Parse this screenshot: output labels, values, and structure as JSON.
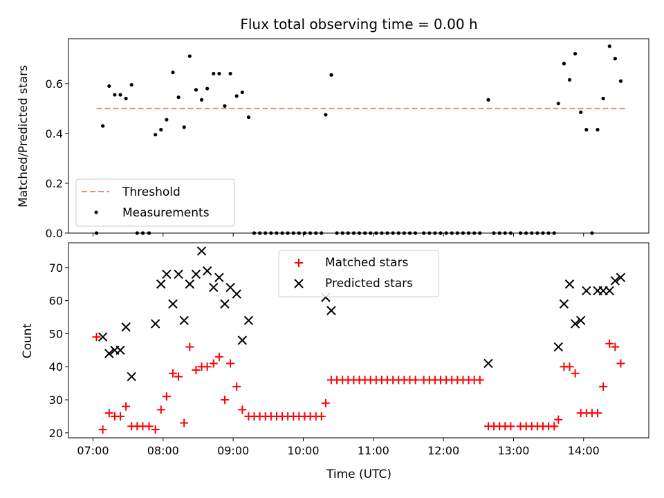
{
  "chart_data": [
    {
      "type": "scatter",
      "title": "Flux total observing time = 0.00 h",
      "xlabel": "",
      "ylabel": "Matched/Predicted stars",
      "xlim": [
        -0.35,
        7.93
      ],
      "ylim": [
        0,
        0.78
      ],
      "yticks": [
        "0.0",
        "0.2",
        "0.4",
        "0.6"
      ],
      "legend": {
        "placement": "lower-left",
        "entries": [
          "Threshold",
          "Measurements"
        ]
      },
      "threshold": {
        "name": "Threshold",
        "y": 0.5,
        "x": [
          0.05,
          7.6
        ],
        "color": "#ff7f7f"
      },
      "series": [
        {
          "name": "Measurements",
          "color": "#000000",
          "points": [
            [
              0.05,
              0.0
            ],
            [
              0.14,
              0.43
            ],
            [
              0.23,
              0.59
            ],
            [
              0.31,
              0.555
            ],
            [
              0.39,
              0.555
            ],
            [
              0.47,
              0.54
            ],
            [
              0.55,
              0.595
            ],
            [
              0.63,
              0.0
            ],
            [
              0.71,
              0.0
            ],
            [
              0.8,
              0.0
            ],
            [
              0.89,
              0.395
            ],
            [
              0.97,
              0.415
            ],
            [
              1.05,
              0.455
            ],
            [
              1.14,
              0.645
            ],
            [
              1.22,
              0.545
            ],
            [
              1.3,
              0.425
            ],
            [
              1.38,
              0.71
            ],
            [
              1.47,
              0.575
            ],
            [
              1.55,
              0.535
            ],
            [
              1.63,
              0.58
            ],
            [
              1.72,
              0.64
            ],
            [
              1.8,
              0.64
            ],
            [
              1.88,
              0.51
            ],
            [
              1.96,
              0.64
            ],
            [
              2.05,
              0.55
            ],
            [
              2.13,
              0.565
            ],
            [
              2.22,
              0.465
            ],
            [
              2.3,
              0.0
            ],
            [
              2.38,
              0.0
            ],
            [
              2.46,
              0.0
            ],
            [
              2.54,
              0.0
            ],
            [
              2.62,
              0.0
            ],
            [
              2.7,
              0.0
            ],
            [
              2.78,
              0.0
            ],
            [
              2.86,
              0.0
            ],
            [
              2.94,
              0.0
            ],
            [
              3.02,
              0.0
            ],
            [
              3.1,
              0.0
            ],
            [
              3.18,
              0.0
            ],
            [
              3.26,
              0.0
            ],
            [
              3.32,
              0.475
            ],
            [
              3.4,
              0.635
            ],
            [
              3.48,
              0.0
            ],
            [
              3.56,
              0.0
            ],
            [
              3.64,
              0.0
            ],
            [
              3.72,
              0.0
            ],
            [
              3.8,
              0.0
            ],
            [
              3.88,
              0.0
            ],
            [
              3.96,
              0.0
            ],
            [
              4.04,
              0.0
            ],
            [
              4.12,
              0.0
            ],
            [
              4.2,
              0.0
            ],
            [
              4.28,
              0.0
            ],
            [
              4.36,
              0.0
            ],
            [
              4.44,
              0.0
            ],
            [
              4.52,
              0.0
            ],
            [
              4.6,
              0.0
            ],
            [
              4.72,
              0.0
            ],
            [
              4.8,
              0.0
            ],
            [
              4.88,
              0.0
            ],
            [
              4.96,
              0.0
            ],
            [
              5.04,
              0.0
            ],
            [
              5.12,
              0.0
            ],
            [
              5.2,
              0.0
            ],
            [
              5.28,
              0.0
            ],
            [
              5.36,
              0.0
            ],
            [
              5.44,
              0.0
            ],
            [
              5.52,
              0.0
            ],
            [
              5.64,
              0.535
            ],
            [
              5.72,
              0.0
            ],
            [
              5.8,
              0.0
            ],
            [
              5.88,
              0.0
            ],
            [
              5.96,
              0.0
            ],
            [
              6.1,
              0.0
            ],
            [
              6.18,
              0.0
            ],
            [
              6.26,
              0.0
            ],
            [
              6.34,
              0.0
            ],
            [
              6.42,
              0.0
            ],
            [
              6.5,
              0.0
            ],
            [
              6.58,
              0.0
            ],
            [
              6.64,
              0.52
            ],
            [
              6.72,
              0.68
            ],
            [
              6.8,
              0.615
            ],
            [
              6.88,
              0.72
            ],
            [
              6.96,
              0.485
            ],
            [
              7.04,
              0.415
            ],
            [
              7.12,
              0.0
            ],
            [
              7.2,
              0.415
            ],
            [
              7.28,
              0.54
            ],
            [
              7.37,
              0.75
            ],
            [
              7.45,
              0.7
            ],
            [
              7.53,
              0.61
            ]
          ]
        }
      ]
    },
    {
      "type": "scatter",
      "title": "",
      "xlabel": "Time (UTC)",
      "ylabel": "Count",
      "xlim": [
        -0.35,
        7.93
      ],
      "ylim": [
        18.5,
        77.5
      ],
      "xticks": [
        "07:00",
        "08:00",
        "09:00",
        "10:00",
        "11:00",
        "12:00",
        "13:00",
        "14:00"
      ],
      "yticks": [
        "20",
        "30",
        "40",
        "50",
        "60",
        "70"
      ],
      "legend": {
        "placement": "top-center",
        "entries": [
          "Matched stars",
          "Predicted stars"
        ]
      },
      "series": [
        {
          "name": "Matched stars",
          "marker": "plus",
          "color": "#ff0000",
          "points": [
            [
              0.05,
              49
            ],
            [
              0.14,
              21
            ],
            [
              0.23,
              26
            ],
            [
              0.31,
              25
            ],
            [
              0.39,
              25
            ],
            [
              0.47,
              28
            ],
            [
              0.55,
              22
            ],
            [
              0.63,
              22
            ],
            [
              0.71,
              22
            ],
            [
              0.8,
              22
            ],
            [
              0.89,
              21
            ],
            [
              0.97,
              27
            ],
            [
              1.05,
              31
            ],
            [
              1.14,
              38
            ],
            [
              1.22,
              37
            ],
            [
              1.3,
              23
            ],
            [
              1.38,
              46
            ],
            [
              1.47,
              39
            ],
            [
              1.55,
              40
            ],
            [
              1.63,
              40
            ],
            [
              1.72,
              41
            ],
            [
              1.8,
              43
            ],
            [
              1.88,
              30
            ],
            [
              1.96,
              41
            ],
            [
              2.05,
              34
            ],
            [
              2.13,
              27
            ],
            [
              2.22,
              25
            ],
            [
              2.3,
              25
            ],
            [
              2.38,
              25
            ],
            [
              2.46,
              25
            ],
            [
              2.54,
              25
            ],
            [
              2.62,
              25
            ],
            [
              2.7,
              25
            ],
            [
              2.78,
              25
            ],
            [
              2.86,
              25
            ],
            [
              2.94,
              25
            ],
            [
              3.02,
              25
            ],
            [
              3.1,
              25
            ],
            [
              3.18,
              25
            ],
            [
              3.26,
              25
            ],
            [
              3.32,
              29
            ],
            [
              3.4,
              36
            ],
            [
              3.48,
              36
            ],
            [
              3.56,
              36
            ],
            [
              3.64,
              36
            ],
            [
              3.72,
              36
            ],
            [
              3.8,
              36
            ],
            [
              3.88,
              36
            ],
            [
              3.96,
              36
            ],
            [
              4.04,
              36
            ],
            [
              4.12,
              36
            ],
            [
              4.2,
              36
            ],
            [
              4.28,
              36
            ],
            [
              4.36,
              36
            ],
            [
              4.44,
              36
            ],
            [
              4.52,
              36
            ],
            [
              4.6,
              36
            ],
            [
              4.72,
              36
            ],
            [
              4.8,
              36
            ],
            [
              4.88,
              36
            ],
            [
              4.96,
              36
            ],
            [
              5.04,
              36
            ],
            [
              5.12,
              36
            ],
            [
              5.2,
              36
            ],
            [
              5.28,
              36
            ],
            [
              5.36,
              36
            ],
            [
              5.44,
              36
            ],
            [
              5.52,
              36
            ],
            [
              5.64,
              22
            ],
            [
              5.72,
              22
            ],
            [
              5.8,
              22
            ],
            [
              5.88,
              22
            ],
            [
              5.96,
              22
            ],
            [
              6.1,
              22
            ],
            [
              6.18,
              22
            ],
            [
              6.26,
              22
            ],
            [
              6.34,
              22
            ],
            [
              6.42,
              22
            ],
            [
              6.5,
              22
            ],
            [
              6.58,
              22
            ],
            [
              6.64,
              24
            ],
            [
              6.72,
              40
            ],
            [
              6.8,
              40
            ],
            [
              6.88,
              38
            ],
            [
              6.96,
              26
            ],
            [
              7.04,
              26
            ],
            [
              7.12,
              26
            ],
            [
              7.2,
              26
            ],
            [
              7.28,
              34
            ],
            [
              7.37,
              47
            ],
            [
              7.45,
              46
            ],
            [
              7.53,
              41
            ]
          ]
        },
        {
          "name": "Predicted stars",
          "marker": "x",
          "color": "#000000",
          "points": [
            [
              0.14,
              49
            ],
            [
              0.23,
              44
            ],
            [
              0.31,
              45
            ],
            [
              0.39,
              45
            ],
            [
              0.47,
              52
            ],
            [
              0.55,
              37
            ],
            [
              0.89,
              53
            ],
            [
              0.97,
              65
            ],
            [
              1.05,
              68
            ],
            [
              1.14,
              59
            ],
            [
              1.22,
              68
            ],
            [
              1.3,
              54
            ],
            [
              1.38,
              65
            ],
            [
              1.47,
              68
            ],
            [
              1.55,
              75
            ],
            [
              1.63,
              69
            ],
            [
              1.72,
              64
            ],
            [
              1.8,
              67
            ],
            [
              1.88,
              59
            ],
            [
              1.96,
              64
            ],
            [
              2.05,
              62
            ],
            [
              2.13,
              48
            ],
            [
              2.22,
              54
            ],
            [
              3.32,
              61
            ],
            [
              3.4,
              57
            ],
            [
              5.64,
              41
            ],
            [
              6.64,
              46
            ],
            [
              6.72,
              59
            ],
            [
              6.8,
              65
            ],
            [
              6.88,
              53
            ],
            [
              6.96,
              54
            ],
            [
              7.04,
              63
            ],
            [
              7.2,
              63
            ],
            [
              7.28,
              63
            ],
            [
              7.37,
              63
            ],
            [
              7.45,
              66
            ],
            [
              7.53,
              67
            ]
          ]
        }
      ]
    }
  ]
}
